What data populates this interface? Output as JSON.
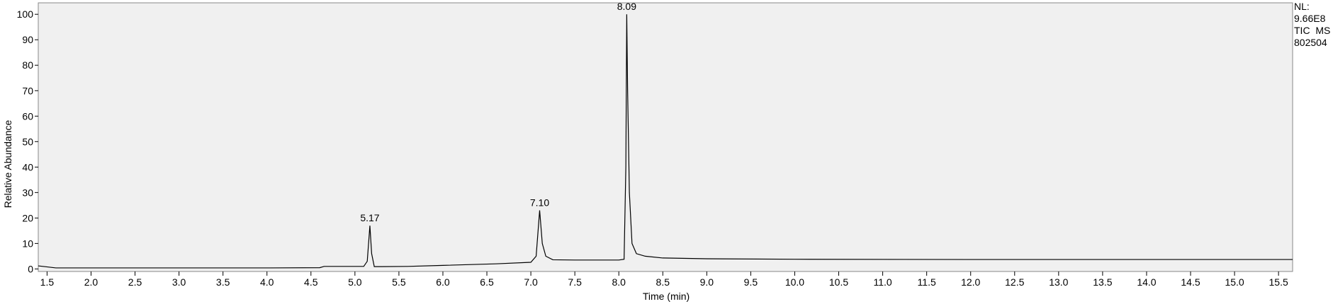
{
  "chart_data": {
    "type": "line",
    "ylabel": "Relative Abundance",
    "xlabel": "Time (min)",
    "info": [
      "NL:",
      "9.66E8",
      "TIC  MS",
      "802504"
    ],
    "color": "#000000",
    "background": "#f0f0f0",
    "xlim": [
      1.4,
      15.66
    ],
    "ylim": [
      -1,
      104.5
    ],
    "yticks": [
      0,
      10,
      20,
      30,
      40,
      50,
      60,
      70,
      80,
      90,
      100
    ],
    "xticks": [
      1.5,
      {
        "value": 2,
        "label": "2.0"
      },
      2.5,
      {
        "value": 3,
        "label": "3.0"
      },
      3.5,
      {
        "value": 4,
        "label": "4.0"
      },
      4.5,
      {
        "value": 5,
        "label": "5.0"
      },
      5.5,
      {
        "value": 6,
        "label": "6.0"
      },
      6.5,
      {
        "value": 7,
        "label": "7.0"
      },
      7.5,
      {
        "value": 8,
        "label": "8.0"
      },
      8.5,
      {
        "value": 9,
        "label": "9.0"
      },
      9.5,
      {
        "value": 10,
        "label": "10.0"
      },
      10.5,
      {
        "value": 11,
        "label": "11.0"
      },
      11.5,
      {
        "value": 12,
        "label": "12.0"
      },
      12.5,
      {
        "value": 13,
        "label": "13.0"
      },
      13.5,
      {
        "value": 14,
        "label": "14.0"
      },
      14.5,
      {
        "value": 15,
        "label": "15.0"
      },
      15.5
    ],
    "x": [
      1.4,
      1.6,
      2.0,
      3.0,
      4.0,
      4.6,
      4.65,
      5.1,
      5.14,
      5.17,
      5.19,
      5.22,
      5.3,
      5.6,
      6.0,
      6.6,
      7.0,
      7.06,
      7.1,
      7.13,
      7.17,
      7.25,
      7.5,
      8.0,
      8.06,
      8.08,
      8.09,
      8.1,
      8.12,
      8.15,
      8.2,
      8.3,
      8.5,
      9.0,
      10.0,
      12.0,
      15.66
    ],
    "values": [
      1.2,
      0.4,
      0.4,
      0.4,
      0.4,
      0.5,
      1.0,
      1.0,
      3,
      17,
      6,
      0.9,
      0.9,
      1.0,
      1.4,
      2.0,
      2.6,
      5,
      23,
      10,
      5,
      3.6,
      3.5,
      3.5,
      3.8,
      40,
      100,
      70,
      30,
      10,
      6,
      5,
      4.3,
      4.0,
      3.8,
      3.7,
      3.7
    ],
    "annotations": [
      {
        "text": "5.17",
        "x": 5.17,
        "y": 17
      },
      {
        "text": "7.10",
        "x": 7.1,
        "y": 23
      },
      {
        "text": "8.09",
        "x": 8.09,
        "y": 100
      }
    ]
  }
}
